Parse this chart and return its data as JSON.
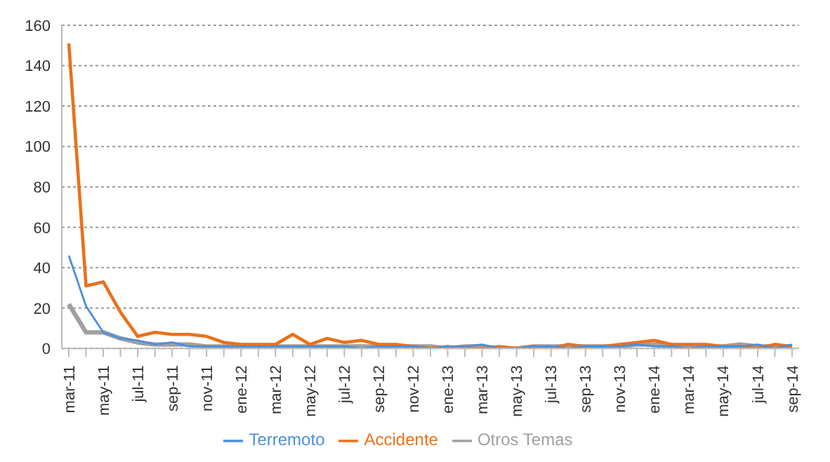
{
  "chart_data": {
    "type": "line",
    "categories": [
      "mar-11",
      null,
      "may-11",
      null,
      "jul-11",
      null,
      "sep-11",
      null,
      "nov-11",
      null,
      "ene-12",
      null,
      "mar-12",
      null,
      "may-12",
      null,
      "jul-12",
      null,
      "sep-12",
      null,
      "nov-12",
      null,
      "ene-13",
      null,
      "mar-13",
      null,
      "may-13",
      null,
      "jul-13",
      null,
      "sep-13",
      null,
      "nov-13",
      null,
      "ene-14",
      null,
      "mar-14",
      null,
      "may-14",
      null,
      "jul-14",
      null,
      "sep-14"
    ],
    "series": [
      {
        "name": "Terremoto",
        "color": "#4a8fdc",
        "values": [
          46,
          21,
          8,
          5,
          4,
          2,
          3,
          1,
          1,
          1,
          1,
          1,
          1,
          1,
          1,
          1,
          1,
          0,
          1,
          1,
          1,
          0,
          1,
          1,
          2,
          0,
          0,
          1,
          1,
          0,
          1,
          1,
          1,
          2,
          1,
          1,
          0,
          1,
          1,
          1,
          2,
          0,
          2
        ]
      },
      {
        "name": "Accidente",
        "color": "#e9711c",
        "values": [
          151,
          31,
          33,
          18,
          6,
          8,
          7,
          7,
          6,
          3,
          2,
          2,
          2,
          7,
          2,
          5,
          3,
          4,
          2,
          2,
          1,
          0,
          1,
          0,
          0,
          1,
          0,
          1,
          0,
          2,
          1,
          1,
          2,
          3,
          4,
          2,
          2,
          2,
          1,
          1,
          0,
          2,
          1
        ]
      },
      {
        "name": "Otros Temas",
        "color": "#a0a0a0",
        "values": [
          22,
          8,
          8,
          5,
          3,
          2,
          2,
          2,
          1,
          1,
          1,
          1,
          1,
          1,
          1,
          1,
          1,
          1,
          1,
          1,
          1,
          1,
          0,
          1,
          1,
          0,
          0,
          1,
          1,
          1,
          1,
          1,
          1,
          2,
          2,
          1,
          1,
          1,
          1,
          2,
          1,
          1,
          1
        ]
      }
    ],
    "ylim": [
      0,
      160
    ],
    "yticks": [
      0,
      20,
      40,
      60,
      80,
      100,
      120,
      140,
      160
    ],
    "grid": "y",
    "legend": "bottom",
    "marker": "none",
    "line_style": "solid"
  }
}
